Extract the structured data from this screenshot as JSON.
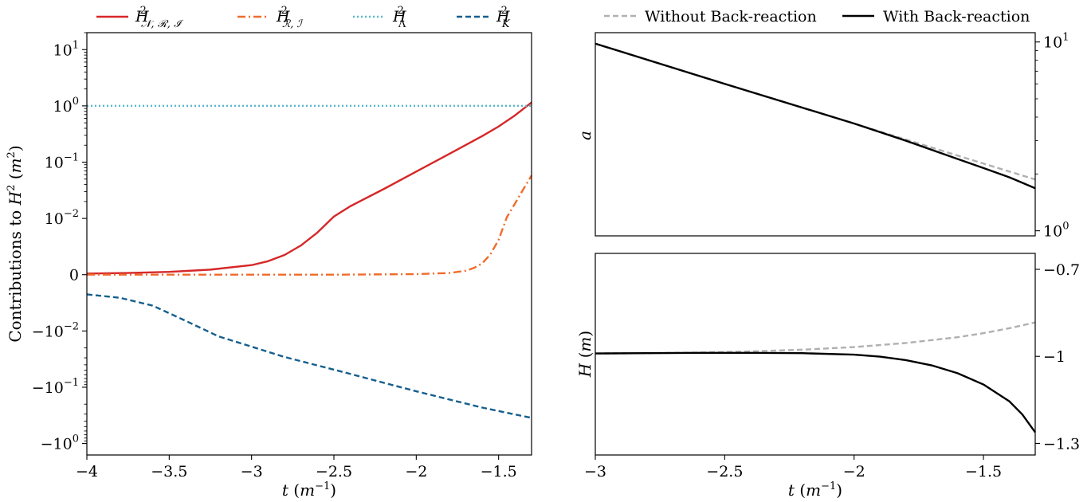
{
  "chart_data": [
    {
      "type": "line",
      "panel": "left",
      "title": "",
      "xlabel": "t (m^-1)",
      "ylabel": "Contributions to H^2 (m^2)",
      "xlim": [
        -4,
        -1.3
      ],
      "yscale": "symlog",
      "linthresh": 0.01,
      "ylim": [
        -1.6,
        20
      ],
      "x_ticks": [
        -4,
        -3.5,
        -3,
        -2.5,
        -2,
        -1.5
      ],
      "x_tick_labels": [
        "−4",
        "−3.5",
        "−3",
        "−2.5",
        "−2",
        "−1.5"
      ],
      "y_ticks": [
        10,
        1,
        0.1,
        0.01,
        0,
        -0.01,
        -0.1,
        -1
      ],
      "y_tick_labels": [
        {
          "base": "10",
          "exp": "1"
        },
        {
          "base": "10",
          "exp": "0"
        },
        {
          "base": "10",
          "exp": "−1"
        },
        {
          "base": "10",
          "exp": "−2"
        },
        {
          "base": "0",
          "exp": ""
        },
        {
          "base": "−10",
          "exp": "−2"
        },
        {
          "base": "−10",
          "exp": "−1"
        },
        {
          "base": "−10",
          "exp": "0"
        }
      ],
      "legend_position": "top",
      "grid": false,
      "series": [
        {
          "name": "H²_{N,R,I}",
          "color": "#d62728",
          "dash": "solid",
          "x": [
            -4.0,
            -3.75,
            -3.5,
            -3.25,
            -3.0,
            -2.9,
            -2.8,
            -2.7,
            -2.6,
            -2.5,
            -2.4,
            -2.2,
            -2.0,
            -1.8,
            -1.6,
            -1.5,
            -1.4,
            -1.3
          ],
          "y": [
            0.0002,
            0.0003,
            0.0005,
            0.0009,
            0.0017,
            0.0024,
            0.0035,
            0.0052,
            0.0075,
            0.0108,
            0.0165,
            0.033,
            0.068,
            0.14,
            0.29,
            0.43,
            0.68,
            1.15
          ]
        },
        {
          "name": "H²_{R,I}",
          "color": "#ee6c2c",
          "dash": "dashdot",
          "x": [
            -4.0,
            -3.5,
            -3.0,
            -2.5,
            -2.0,
            -1.8,
            -1.7,
            -1.65,
            -1.6,
            -1.55,
            -1.5,
            -1.45,
            -1.4,
            -1.35,
            -1.3
          ],
          "y": [
            0.0,
            0.0,
            0.0,
            0.0,
            0.0001,
            0.0003,
            0.0007,
            0.0012,
            0.002,
            0.0036,
            0.0062,
            0.0105,
            0.0185,
            0.033,
            0.058
          ]
        },
        {
          "name": "H²_Λ",
          "color": "#5bb8cc",
          "dash": "dotted",
          "x": [
            -4.0,
            -1.3
          ],
          "y": [
            1.0,
            1.0
          ]
        },
        {
          "name": "H²_K",
          "color": "#155f8e",
          "dash": "dashed",
          "x": [
            -4.0,
            -3.8,
            -3.6,
            -3.4,
            -3.2,
            -3.0,
            -2.8,
            -2.6,
            -2.4,
            -2.2,
            -2.0,
            -1.8,
            -1.6,
            -1.4,
            -1.3
          ],
          "y": [
            -0.0035,
            -0.0041,
            -0.0055,
            -0.0082,
            -0.0125,
            -0.019,
            -0.029,
            -0.041,
            -0.058,
            -0.083,
            -0.118,
            -0.165,
            -0.23,
            -0.305,
            -0.35
          ]
        }
      ]
    },
    {
      "type": "line",
      "panel": "right-top",
      "title": "",
      "xlabel": "",
      "ylabel": "a",
      "xlim": [
        -3,
        -1.3
      ],
      "yscale": "log",
      "ylim": [
        0.94,
        11.2
      ],
      "y_ticks": [
        10,
        1
      ],
      "y_tick_labels": [
        {
          "base": "10",
          "exp": "1"
        },
        {
          "base": "10",
          "exp": "0"
        }
      ],
      "y_axis_side": "right",
      "legend_position": "top",
      "grid": false,
      "series": [
        {
          "name": "Without Back-reaction",
          "color": "#b0b0b0",
          "dash": "dashed",
          "x": [
            -3.0,
            -2.5,
            -2.0,
            -1.5,
            -1.3
          ],
          "y": [
            9.8,
            6.0,
            3.7,
            2.27,
            1.87
          ]
        },
        {
          "name": "With Back-reaction",
          "color": "#000000",
          "dash": "solid",
          "x": [
            -3.0,
            -2.5,
            -2.0,
            -1.8,
            -1.6,
            -1.5,
            -1.4,
            -1.3
          ],
          "y": [
            9.8,
            6.0,
            3.7,
            3.0,
            2.4,
            2.15,
            1.92,
            1.68
          ]
        }
      ]
    },
    {
      "type": "line",
      "panel": "right-bottom",
      "title": "",
      "xlabel": "t (m^-1)",
      "ylabel": "H (m)",
      "xlim": [
        -3,
        -1.3
      ],
      "ylim": [
        -1.34,
        -0.645
      ],
      "x_ticks": [
        -3,
        -2.5,
        -2,
        -1.5
      ],
      "x_tick_labels": [
        "−3",
        "−2.5",
        "−2",
        "−1.5"
      ],
      "y_ticks": [
        -0.7,
        -1,
        -1.3
      ],
      "y_tick_labels": [
        "−0.7",
        "−1",
        "−1.3"
      ],
      "y_axis_side": "right",
      "grid": false,
      "series": [
        {
          "name": "Without Back-reaction",
          "color": "#b0b0b0",
          "dash": "dashed",
          "x": [
            -3.0,
            -2.8,
            -2.6,
            -2.4,
            -2.2,
            -2.0,
            -1.8,
            -1.6,
            -1.5,
            -1.4,
            -1.3
          ],
          "y": [
            -0.99,
            -0.989,
            -0.987,
            -0.983,
            -0.977,
            -0.968,
            -0.954,
            -0.934,
            -0.92,
            -0.903,
            -0.883
          ]
        },
        {
          "name": "With Back-reaction",
          "color": "#000000",
          "dash": "solid",
          "x": [
            -3.0,
            -2.8,
            -2.6,
            -2.4,
            -2.2,
            -2.0,
            -1.9,
            -1.8,
            -1.7,
            -1.6,
            -1.5,
            -1.4,
            -1.35,
            -1.3
          ],
          "y": [
            -0.99,
            -0.989,
            -0.988,
            -0.988,
            -0.989,
            -0.994,
            -1.001,
            -1.013,
            -1.031,
            -1.058,
            -1.097,
            -1.155,
            -1.2,
            -1.262
          ]
        }
      ]
    }
  ],
  "legends": {
    "left": [
      "H²_{N,R,I}",
      "H²_{R,I}",
      "H²_Λ",
      "H²_K"
    ],
    "right": [
      "Without Back-reaction",
      "With Back-reaction"
    ]
  }
}
